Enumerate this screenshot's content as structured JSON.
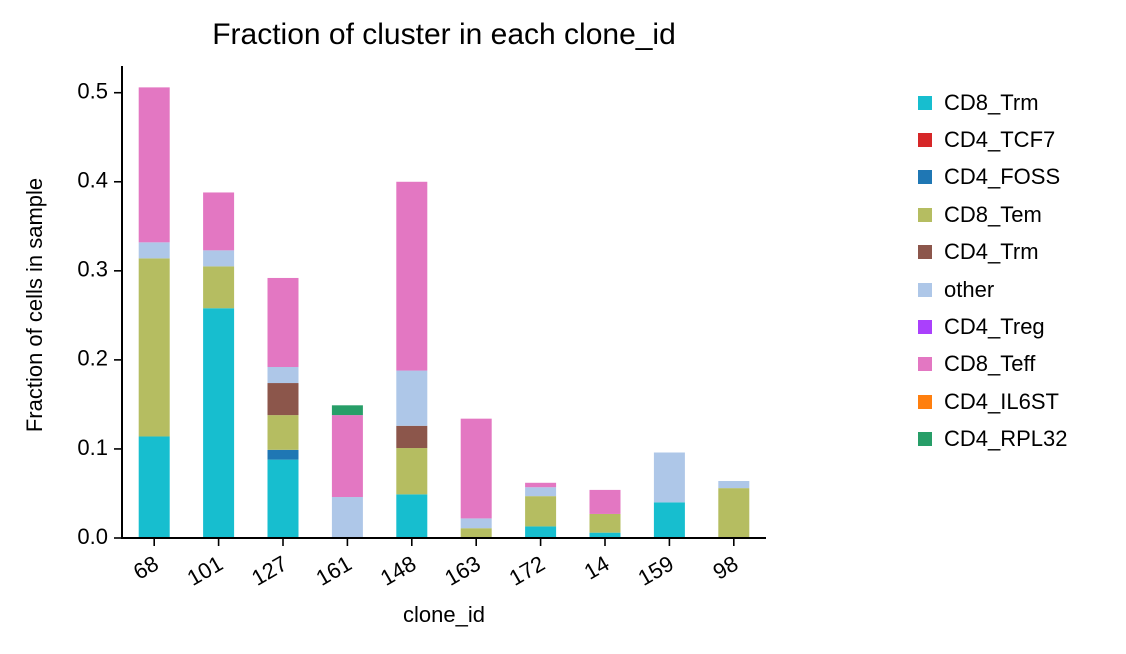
{
  "chart_data": {
    "type": "bar",
    "stacked": true,
    "title": "Fraction of cluster in each clone_id",
    "xlabel": "clone_id",
    "ylabel": "Fraction of cells in sample",
    "ylim": [
      0,
      0.53
    ],
    "yticks": [
      "0.0",
      "0.1",
      "0.2",
      "0.3",
      "0.4",
      "0.5"
    ],
    "grid": false,
    "legend_position": "right",
    "categories": [
      "68",
      "101",
      "127",
      "161",
      "148",
      "163",
      "172",
      "14",
      "159",
      "98"
    ],
    "series": [
      {
        "name": "CD8_Trm",
        "color": "#17becf",
        "values": [
          0.114,
          0.258,
          0.088,
          0.0,
          0.049,
          0.0,
          0.013,
          0.006,
          0.04,
          0.0
        ]
      },
      {
        "name": "CD4_TCF7",
        "color": "#d62728",
        "values": [
          0,
          0,
          0,
          0,
          0,
          0,
          0,
          0,
          0,
          0
        ]
      },
      {
        "name": "CD4_FOSS",
        "color": "#1f77b4",
        "values": [
          0.0,
          0.0,
          0.011,
          0.0,
          0.0,
          0.0,
          0.0,
          0.0,
          0.0,
          0.0
        ]
      },
      {
        "name": "CD8_Tem",
        "color": "#b5bd61",
        "values": [
          0.2,
          0.047,
          0.039,
          0.0,
          0.052,
          0.011,
          0.034,
          0.021,
          0.0,
          0.056
        ]
      },
      {
        "name": "CD4_Trm",
        "color": "#8c564b",
        "values": [
          0.0,
          0.0,
          0.036,
          0.0,
          0.025,
          0.0,
          0.0,
          0.0,
          0.0,
          0.0
        ]
      },
      {
        "name": "other",
        "color": "#aec7e8",
        "values": [
          0.018,
          0.018,
          0.018,
          0.046,
          0.062,
          0.011,
          0.01,
          0.0,
          0.056,
          0.008
        ]
      },
      {
        "name": "CD4_Treg",
        "color": "#aa40fc",
        "values": [
          0,
          0,
          0,
          0,
          0,
          0,
          0,
          0,
          0,
          0
        ]
      },
      {
        "name": "CD8_Teff",
        "color": "#e377c2",
        "values": [
          0.174,
          0.065,
          0.1,
          0.092,
          0.212,
          0.112,
          0.005,
          0.027,
          0.0,
          0.0
        ]
      },
      {
        "name": "CD4_IL6ST",
        "color": "#ff7f0e",
        "values": [
          0,
          0,
          0,
          0,
          0,
          0,
          0,
          0,
          0,
          0
        ]
      },
      {
        "name": "CD4_RPL32",
        "color": "#279e68",
        "values": [
          0.0,
          0.0,
          0.0,
          0.011,
          0.0,
          0.0,
          0.0,
          0.0,
          0.0,
          0.0
        ]
      }
    ]
  }
}
